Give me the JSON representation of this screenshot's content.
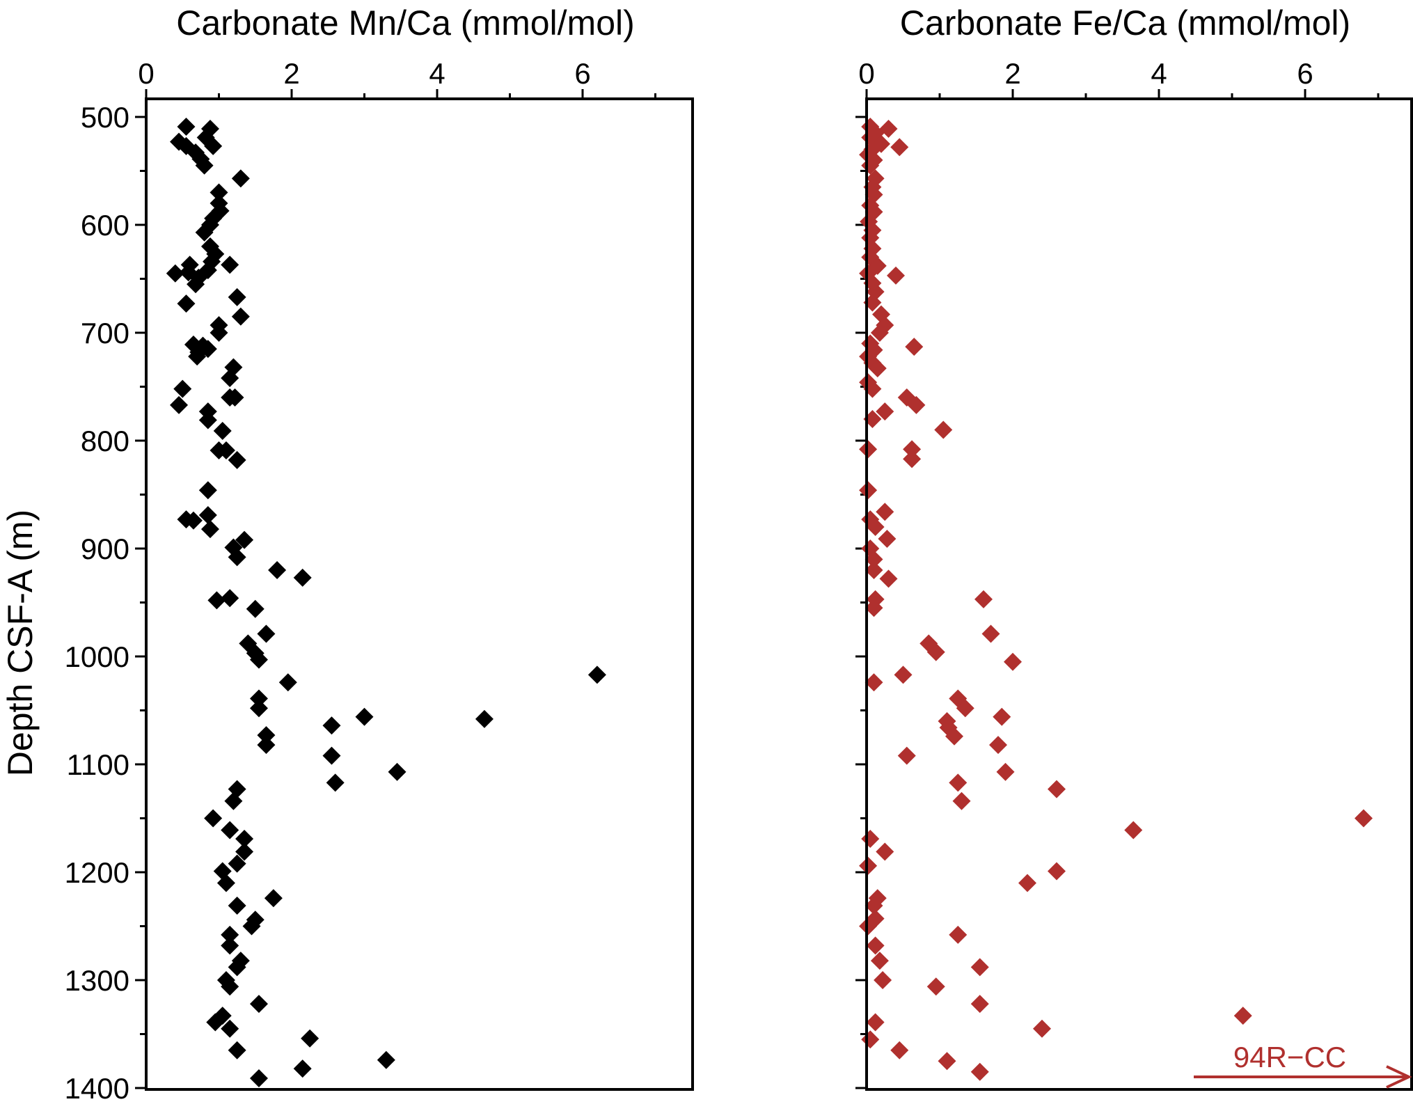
{
  "chart_data": [
    {
      "type": "scatter",
      "title": "Carbonate Mn/Ca (mmol/mol)",
      "xlabel": "Carbonate Mn/Ca (mmol/mol)",
      "ylabel": "Depth CSF-A (m)",
      "x_ticks": [
        "0",
        "2",
        "4",
        "6"
      ],
      "y_ticks": [
        "500",
        "600",
        "700",
        "800",
        "900",
        "1000",
        "1100",
        "1200",
        "1300",
        "1400"
      ],
      "xlim": [
        0,
        7.5
      ],
      "ylim": [
        1400,
        480
      ],
      "y_reversed": true,
      "x_axis_position": "top",
      "marker": "diamond",
      "color": "#000000",
      "points": [
        [
          0.55,
          509
        ],
        [
          0.88,
          511
        ],
        [
          0.45,
          523
        ],
        [
          0.82,
          519
        ],
        [
          0.55,
          527
        ],
        [
          0.92,
          527
        ],
        [
          0.68,
          533
        ],
        [
          0.75,
          539
        ],
        [
          0.8,
          545
        ],
        [
          1.3,
          557
        ],
        [
          1.0,
          570
        ],
        [
          1.0,
          580
        ],
        [
          1.02,
          587
        ],
        [
          0.92,
          594
        ],
        [
          0.88,
          600
        ],
        [
          0.8,
          607
        ],
        [
          0.88,
          620
        ],
        [
          0.95,
          627
        ],
        [
          0.9,
          634
        ],
        [
          0.6,
          637
        ],
        [
          1.15,
          637
        ],
        [
          0.85,
          642
        ],
        [
          0.58,
          644
        ],
        [
          0.4,
          645
        ],
        [
          0.72,
          649
        ],
        [
          0.68,
          655
        ],
        [
          1.25,
          667
        ],
        [
          0.55,
          673
        ],
        [
          1.3,
          685
        ],
        [
          1.0,
          693
        ],
        [
          1.0,
          700
        ],
        [
          0.65,
          711
        ],
        [
          0.78,
          712
        ],
        [
          0.85,
          715
        ],
        [
          0.72,
          718
        ],
        [
          0.7,
          722
        ],
        [
          1.2,
          732
        ],
        [
          1.15,
          742
        ],
        [
          0.5,
          752
        ],
        [
          1.22,
          760
        ],
        [
          1.15,
          760
        ],
        [
          0.45,
          767
        ],
        [
          0.85,
          773
        ],
        [
          0.85,
          781
        ],
        [
          1.05,
          791
        ],
        [
          1.0,
          809
        ],
        [
          1.1,
          809
        ],
        [
          1.25,
          818
        ],
        [
          0.85,
          846
        ],
        [
          0.55,
          873
        ],
        [
          0.85,
          869
        ],
        [
          0.65,
          874
        ],
        [
          0.88,
          882
        ],
        [
          1.35,
          892
        ],
        [
          1.2,
          899
        ],
        [
          1.25,
          908
        ],
        [
          1.8,
          920
        ],
        [
          2.15,
          927
        ],
        [
          1.15,
          946
        ],
        [
          0.97,
          948
        ],
        [
          1.5,
          956
        ],
        [
          1.65,
          979
        ],
        [
          1.4,
          988
        ],
        [
          1.5,
          997
        ],
        [
          1.55,
          1003
        ],
        [
          1.95,
          1024
        ],
        [
          6.2,
          1017
        ],
        [
          1.55,
          1039
        ],
        [
          1.55,
          1048
        ],
        [
          3.0,
          1056
        ],
        [
          4.65,
          1058
        ],
        [
          2.55,
          1064
        ],
        [
          1.65,
          1073
        ],
        [
          1.65,
          1082
        ],
        [
          2.55,
          1092
        ],
        [
          3.45,
          1107
        ],
        [
          2.6,
          1117
        ],
        [
          1.25,
          1123
        ],
        [
          1.2,
          1134
        ],
        [
          0.92,
          1150
        ],
        [
          1.15,
          1161
        ],
        [
          1.35,
          1169
        ],
        [
          1.35,
          1181
        ],
        [
          1.25,
          1192
        ],
        [
          1.05,
          1199
        ],
        [
          1.1,
          1210
        ],
        [
          1.75,
          1224
        ],
        [
          1.25,
          1231
        ],
        [
          1.5,
          1244
        ],
        [
          1.45,
          1250
        ],
        [
          1.15,
          1258
        ],
        [
          1.15,
          1268
        ],
        [
          1.3,
          1282
        ],
        [
          1.25,
          1288
        ],
        [
          1.1,
          1300
        ],
        [
          1.15,
          1306
        ],
        [
          1.55,
          1322
        ],
        [
          1.05,
          1333
        ],
        [
          0.95,
          1339
        ],
        [
          1.15,
          1345
        ],
        [
          2.25,
          1354
        ],
        [
          1.25,
          1365
        ],
        [
          3.3,
          1374
        ],
        [
          2.15,
          1382
        ],
        [
          1.55,
          1391
        ]
      ]
    },
    {
      "type": "scatter",
      "title": "Carbonate Fe/Ca (mmol/mol)",
      "xlabel": "Carbonate Fe/Ca (mmol/mol)",
      "ylabel": "",
      "x_ticks": [
        "0",
        "2",
        "4",
        "6"
      ],
      "xlim": [
        0,
        7.5
      ],
      "ylim": [
        1400,
        480
      ],
      "y_reversed": true,
      "x_axis_position": "top",
      "marker": "diamond",
      "color": "#b0302e",
      "annotation": {
        "text": "94R−CC",
        "arrow": "right",
        "color": "#b0302e"
      },
      "points": [
        [
          0.05,
          509
        ],
        [
          0.3,
          511
        ],
        [
          0.12,
          515
        ],
        [
          0.05,
          519
        ],
        [
          0.2,
          525
        ],
        [
          0.45,
          528
        ],
        [
          0.08,
          530
        ],
        [
          0.02,
          535
        ],
        [
          0.1,
          540
        ],
        [
          0.05,
          545
        ],
        [
          0.12,
          557
        ],
        [
          0.08,
          565
        ],
        [
          0.1,
          572
        ],
        [
          0.05,
          582
        ],
        [
          0.1,
          588
        ],
        [
          0.03,
          597
        ],
        [
          0.08,
          605
        ],
        [
          0.05,
          612
        ],
        [
          0.08,
          622
        ],
        [
          0.05,
          630
        ],
        [
          0.15,
          638
        ],
        [
          0.02,
          645
        ],
        [
          0.4,
          647
        ],
        [
          0.08,
          654
        ],
        [
          0.12,
          662
        ],
        [
          0.08,
          672
        ],
        [
          0.2,
          683
        ],
        [
          0.25,
          693
        ],
        [
          0.18,
          700
        ],
        [
          0.65,
          713
        ],
        [
          0.05,
          710
        ],
        [
          0.1,
          716
        ],
        [
          0.02,
          722
        ],
        [
          0.08,
          728
        ],
        [
          0.15,
          733
        ],
        [
          0.02,
          746
        ],
        [
          0.08,
          752
        ],
        [
          0.55,
          760
        ],
        [
          0.68,
          767
        ],
        [
          0.25,
          773
        ],
        [
          0.08,
          780
        ],
        [
          1.05,
          790
        ],
        [
          0.02,
          808
        ],
        [
          0.62,
          808
        ],
        [
          0.62,
          817
        ],
        [
          0.02,
          846
        ],
        [
          0.25,
          866
        ],
        [
          0.05,
          873
        ],
        [
          0.12,
          880
        ],
        [
          0.28,
          891
        ],
        [
          0.05,
          900
        ],
        [
          0.1,
          910
        ],
        [
          0.1,
          920
        ],
        [
          0.3,
          928
        ],
        [
          1.6,
          947
        ],
        [
          0.12,
          947
        ],
        [
          0.1,
          955
        ],
        [
          1.7,
          979
        ],
        [
          0.85,
          988
        ],
        [
          0.95,
          996
        ],
        [
          2.0,
          1005
        ],
        [
          0.5,
          1017
        ],
        [
          0.1,
          1024
        ],
        [
          1.25,
          1039
        ],
        [
          1.35,
          1048
        ],
        [
          1.85,
          1056
        ],
        [
          1.1,
          1060
        ],
        [
          1.12,
          1066
        ],
        [
          1.2,
          1074
        ],
        [
          1.8,
          1082
        ],
        [
          0.55,
          1092
        ],
        [
          1.9,
          1107
        ],
        [
          1.25,
          1117
        ],
        [
          2.6,
          1123
        ],
        [
          1.3,
          1134
        ],
        [
          6.8,
          1150
        ],
        [
          3.65,
          1161
        ],
        [
          0.05,
          1169
        ],
        [
          0.25,
          1181
        ],
        [
          0.02,
          1194
        ],
        [
          2.6,
          1199
        ],
        [
          2.2,
          1210
        ],
        [
          0.15,
          1224
        ],
        [
          0.1,
          1231
        ],
        [
          0.12,
          1243
        ],
        [
          0.02,
          1250
        ],
        [
          1.25,
          1258
        ],
        [
          0.12,
          1268
        ],
        [
          0.18,
          1282
        ],
        [
          1.55,
          1288
        ],
        [
          0.22,
          1300
        ],
        [
          0.95,
          1306
        ],
        [
          1.55,
          1322
        ],
        [
          5.15,
          1333
        ],
        [
          0.12,
          1339
        ],
        [
          2.4,
          1345
        ],
        [
          0.05,
          1355
        ],
        [
          0.45,
          1365
        ],
        [
          1.1,
          1375
        ],
        [
          1.55,
          1385
        ]
      ]
    }
  ]
}
